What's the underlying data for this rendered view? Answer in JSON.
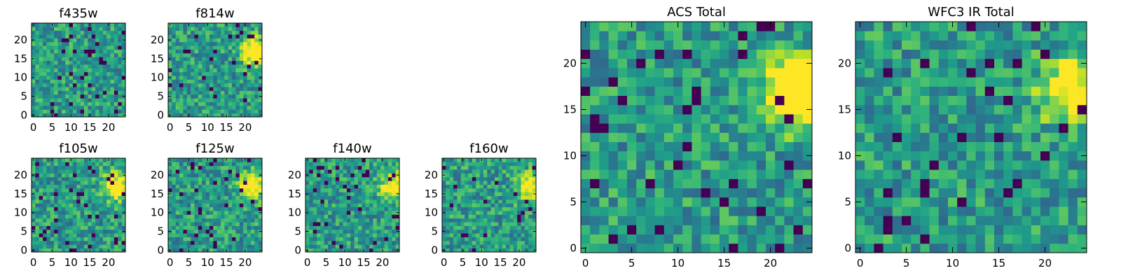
{
  "chart_data": {
    "type": "heatmap",
    "colormap": "viridis",
    "panels": [
      {
        "title": "f435w",
        "grid_size": 25,
        "xticks": [
          0,
          5,
          10,
          15,
          20
        ],
        "yticks": [
          0,
          5,
          10,
          15,
          20
        ],
        "xlim": [
          -0.5,
          24.5
        ],
        "ylim": [
          -0.5,
          24.5
        ],
        "bright_spot": null,
        "min_level": 0.45,
        "max_level": 1.0
      },
      {
        "title": "f814w",
        "grid_size": 25,
        "xticks": [
          0,
          5,
          10,
          15,
          20
        ],
        "yticks": [
          0,
          5,
          10,
          15,
          20
        ],
        "xlim": [
          -0.5,
          24.5
        ],
        "ylim": [
          -0.5,
          24.5
        ],
        "bright_spot": [
          23,
          17
        ],
        "min_level": 0.35,
        "max_level": 1.0
      },
      {
        "title": "f105w",
        "grid_size": 25,
        "xticks": [
          0,
          5,
          10,
          15,
          20
        ],
        "yticks": [
          0,
          5,
          10,
          15,
          20
        ],
        "xlim": [
          -0.5,
          24.5
        ],
        "ylim": [
          -0.5,
          24.5
        ],
        "bright_spot": [
          22,
          17
        ],
        "min_level": 0.2,
        "max_level": 1.0
      },
      {
        "title": "f125w",
        "grid_size": 25,
        "xticks": [
          0,
          5,
          10,
          15,
          20
        ],
        "yticks": [
          0,
          5,
          10,
          15,
          20
        ],
        "xlim": [
          -0.5,
          24.5
        ],
        "ylim": [
          -0.5,
          24.5
        ],
        "bright_spot": [
          22,
          17
        ],
        "min_level": 0.15,
        "max_level": 1.0
      },
      {
        "title": "f140w",
        "grid_size": 25,
        "xticks": [
          0,
          5,
          10,
          15,
          20
        ],
        "yticks": [
          0,
          5,
          10,
          15,
          20
        ],
        "xlim": [
          -0.5,
          24.5
        ],
        "ylim": [
          -0.5,
          24.5
        ],
        "bright_spot": [
          23,
          17
        ],
        "min_level": 0.15,
        "max_level": 1.0
      },
      {
        "title": "f160w",
        "grid_size": 25,
        "xticks": [
          0,
          5,
          10,
          15,
          20
        ],
        "yticks": [
          0,
          5,
          10,
          15,
          20
        ],
        "xlim": [
          -0.5,
          24.5
        ],
        "ylim": [
          -0.5,
          24.5
        ],
        "bright_spot": [
          23,
          17
        ],
        "min_level": 0.1,
        "max_level": 1.0
      },
      {
        "title": "ACS Total",
        "grid_size": 25,
        "xticks": [
          0,
          5,
          10,
          15,
          20
        ],
        "yticks": [
          0,
          5,
          10,
          15,
          20
        ],
        "xlim": [
          -0.5,
          24.5
        ],
        "ylim": [
          -0.5,
          24.5
        ],
        "bright_spot": [
          23,
          17
        ],
        "min_level": 0.45,
        "max_level": 1.0
      },
      {
        "title": "WFC3 IR Total",
        "grid_size": 25,
        "xticks": [
          0,
          5,
          10,
          15,
          20
        ],
        "yticks": [
          0,
          5,
          10,
          15,
          20
        ],
        "xlim": [
          -0.5,
          24.5
        ],
        "ylim": [
          -0.5,
          24.5
        ],
        "bright_spot": [
          23,
          17
        ],
        "min_level": 0.2,
        "max_level": 1.0
      }
    ]
  }
}
